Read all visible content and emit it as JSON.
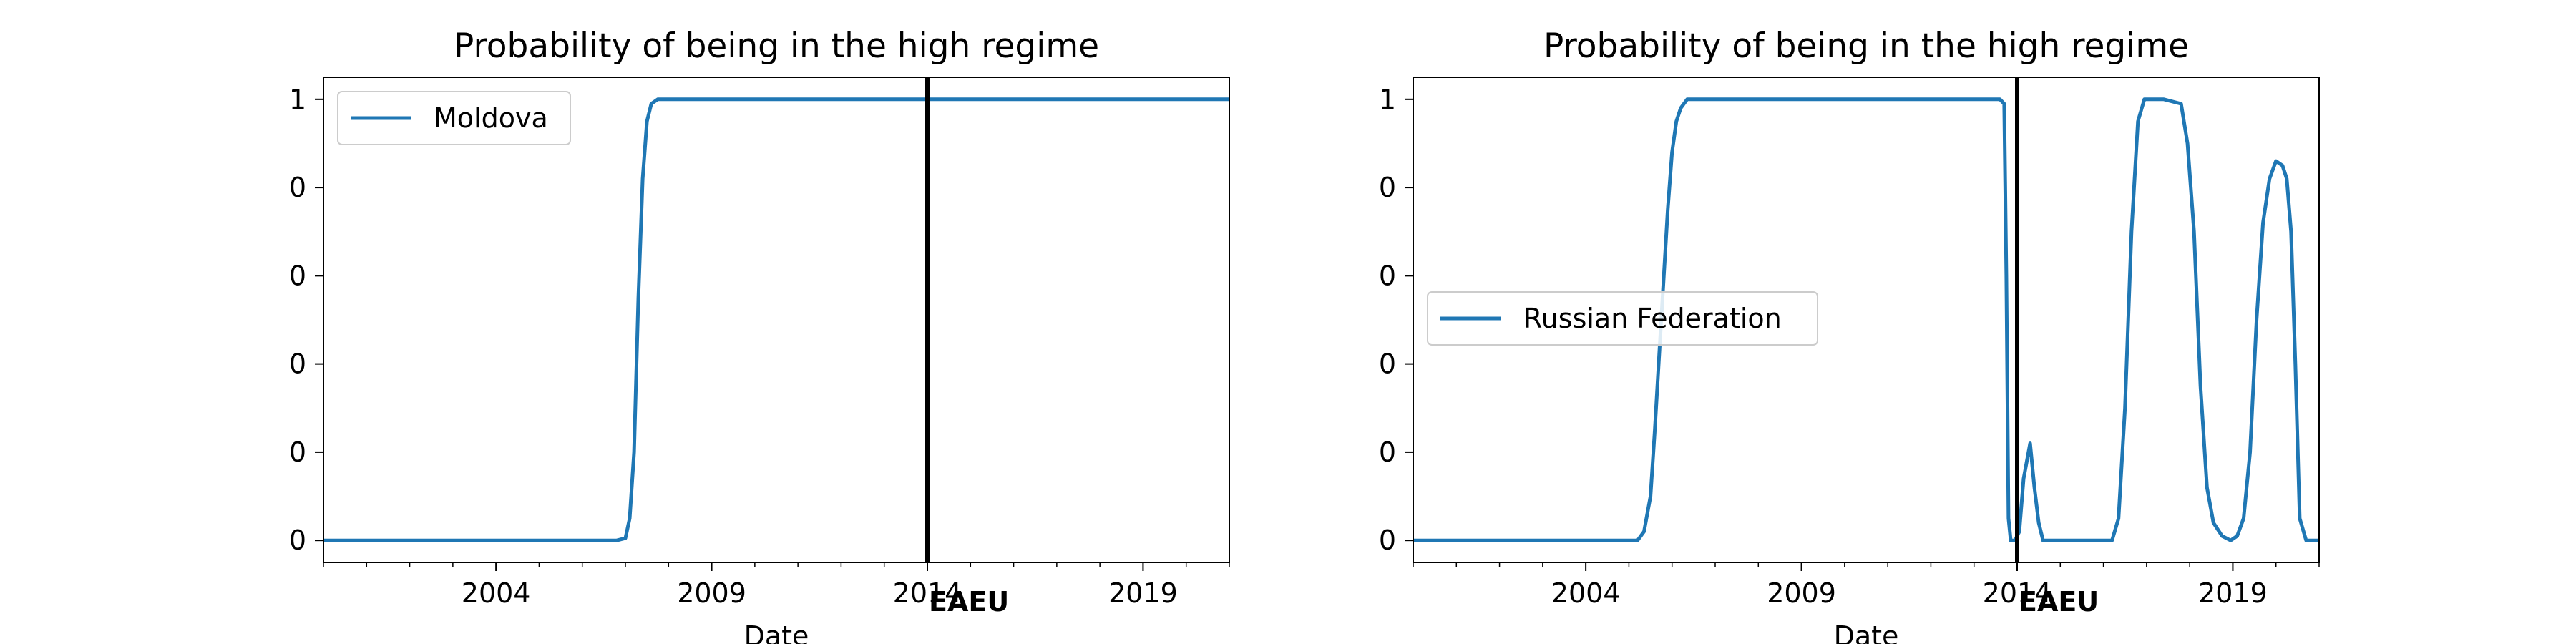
{
  "colors": {
    "series": "#1f77b4",
    "event_line": "#000000",
    "legend_border": "#cccccc"
  },
  "chart_data": [
    {
      "type": "line",
      "title": "Probability of being in the high regime",
      "xlabel": "Date",
      "ylabel": "",
      "xlim": [
        2000.0,
        2021.0
      ],
      "ylim": [
        -0.05,
        1.05
      ],
      "xticks": [
        2004,
        2009,
        2014,
        2019
      ],
      "xtick_labels": [
        "2004",
        "2009",
        "2014",
        "2019"
      ],
      "yticks": [
        0.0,
        0.2,
        0.4,
        0.6,
        0.8,
        1.0
      ],
      "ytick_labels": [
        "0",
        "0",
        "0",
        "0",
        "0",
        "1"
      ],
      "grid": false,
      "legend_position": "upper left",
      "series": [
        {
          "name": "Moldova",
          "x": [
            2000.0,
            2006.8,
            2007.0,
            2007.1,
            2007.2,
            2007.3,
            2007.4,
            2007.5,
            2007.6,
            2007.75,
            2008.0,
            2021.0
          ],
          "y": [
            0.0,
            0.0,
            0.005,
            0.05,
            0.2,
            0.55,
            0.82,
            0.95,
            0.99,
            1.0,
            1.0,
            1.0
          ]
        }
      ],
      "event": {
        "x": 2014.0,
        "label": "EAEU"
      }
    },
    {
      "type": "line",
      "title": "Probability of being in the high regime",
      "xlabel": "Date",
      "ylabel": "",
      "xlim": [
        2000.0,
        2021.0
      ],
      "ylim": [
        -0.05,
        1.05
      ],
      "xticks": [
        2004,
        2009,
        2014,
        2019
      ],
      "xtick_labels": [
        "2004",
        "2009",
        "2014",
        "2019"
      ],
      "yticks": [
        0.0,
        0.2,
        0.4,
        0.6,
        0.8,
        1.0
      ],
      "ytick_labels": [
        "0",
        "0",
        "0",
        "0",
        "0",
        "1"
      ],
      "grid": false,
      "legend_position": "center left",
      "series": [
        {
          "name": "Russian Federation",
          "x": [
            2000.0,
            2005.2,
            2005.35,
            2005.5,
            2005.6,
            2005.75,
            2005.9,
            2006.0,
            2006.1,
            2006.2,
            2006.35,
            2006.6,
            2007.0,
            2009.0,
            2013.6,
            2013.7,
            2013.75,
            2013.8,
            2013.85,
            2013.95,
            2014.05,
            2014.15,
            2014.3,
            2014.4,
            2014.5,
            2014.6,
            2014.7,
            2014.85,
            2015.5,
            2016.2,
            2016.35,
            2016.5,
            2016.65,
            2016.8,
            2016.95,
            2017.05,
            2017.2,
            2017.4,
            2017.8,
            2017.95,
            2018.1,
            2018.25,
            2018.4,
            2018.55,
            2018.75,
            2018.95,
            2019.1,
            2019.25,
            2019.4,
            2019.55,
            2019.7,
            2019.85,
            2020.0,
            2020.15,
            2020.25,
            2020.35,
            2020.45,
            2020.55,
            2020.7,
            2021.0
          ],
          "y": [
            0.0,
            0.0,
            0.02,
            0.1,
            0.25,
            0.5,
            0.75,
            0.88,
            0.95,
            0.98,
            1.0,
            1.0,
            1.0,
            1.0,
            1.0,
            0.99,
            0.6,
            0.05,
            0.0,
            0.0,
            0.02,
            0.14,
            0.22,
            0.12,
            0.04,
            0.0,
            0.0,
            0.0,
            0.0,
            0.0,
            0.05,
            0.3,
            0.7,
            0.95,
            1.0,
            1.0,
            1.0,
            1.0,
            0.99,
            0.9,
            0.7,
            0.35,
            0.12,
            0.04,
            0.01,
            0.0,
            0.01,
            0.05,
            0.2,
            0.5,
            0.72,
            0.82,
            0.86,
            0.85,
            0.82,
            0.7,
            0.4,
            0.05,
            0.0,
            0.0
          ]
        }
      ],
      "event": {
        "x": 2014.0,
        "label": "EAEU"
      }
    }
  ]
}
